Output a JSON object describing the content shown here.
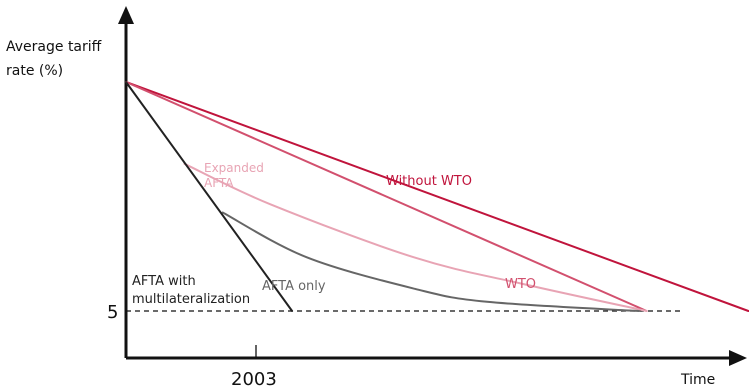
{
  "chart_data": {
    "type": "line",
    "title": "",
    "ylabel_line1": "Average tariff",
    "ylabel_line2": "rate (%)",
    "xlabel": "Time",
    "y_tick": "5",
    "x_tick": "2003",
    "series": [
      {
        "name": "Without WTO",
        "color": "#c0143c",
        "points": [
          [
            0.0,
            1.0
          ],
          [
            0.862,
            0.0
          ]
        ]
      },
      {
        "name": "WTO",
        "color": "#d2506e",
        "points": [
          [
            0.0,
            1.0
          ],
          [
            0.721,
            0.0
          ]
        ]
      },
      {
        "name": "Expanded AFTA",
        "label_line1": "Expanded",
        "label_line2": "AFTA",
        "color": "#e8a4b4",
        "points": [
          [
            0.081,
            0.643
          ],
          [
            0.2,
            0.466
          ],
          [
            0.4,
            0.233
          ],
          [
            0.55,
            0.118
          ],
          [
            0.721,
            0.0
          ]
        ]
      },
      {
        "name": "AFTA only",
        "color": "#666666",
        "points": [
          [
            0.134,
            0.43
          ],
          [
            0.25,
            0.235
          ],
          [
            0.4,
            0.097
          ],
          [
            0.5,
            0.04
          ],
          [
            0.71,
            0.0
          ]
        ]
      },
      {
        "name": "AFTA with multilateralization",
        "label_line1": "AFTA with",
        "label_line2": "multilateralization",
        "color": "#222222",
        "points": [
          [
            0.0,
            1.0
          ],
          [
            0.23,
            0.0
          ]
        ]
      }
    ]
  }
}
